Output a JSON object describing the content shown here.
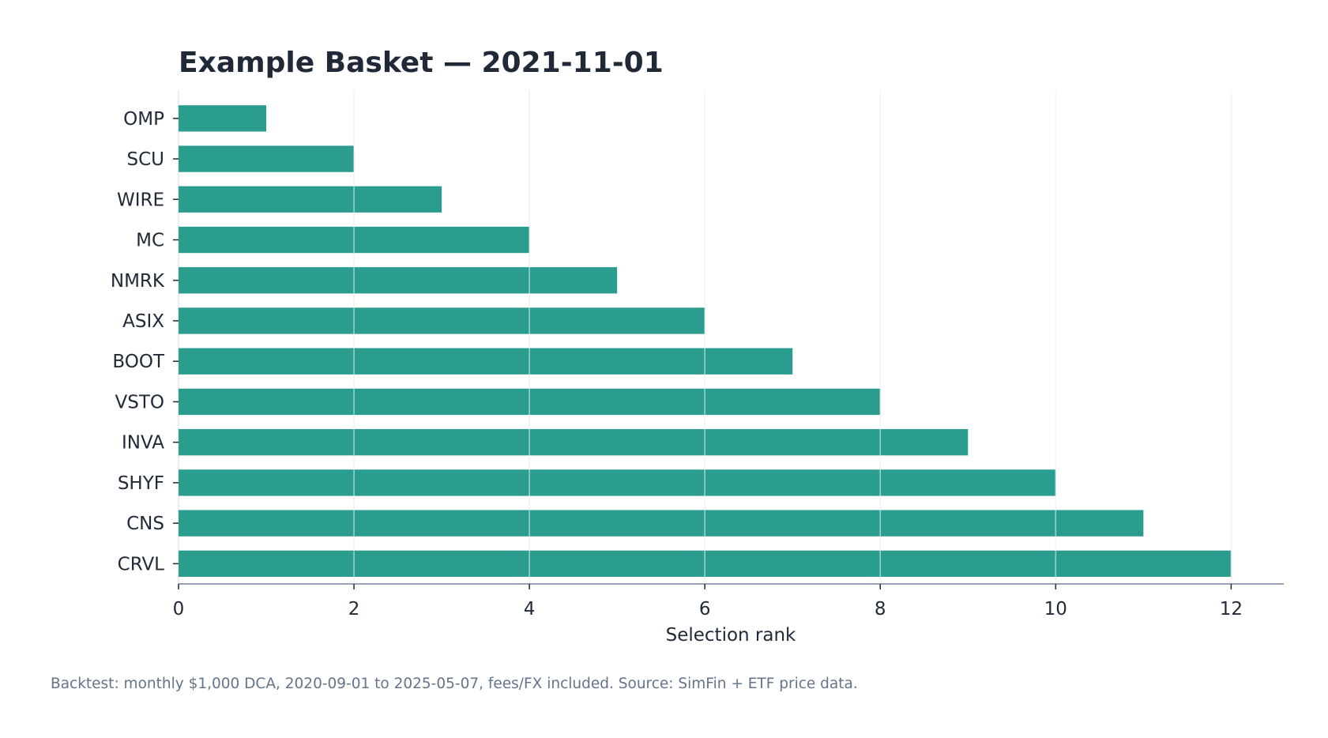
{
  "chart_data": {
    "type": "bar",
    "orientation": "horizontal",
    "title": "Example Basket — 2021-11-01",
    "xlabel": "Selection rank",
    "ylabel": "",
    "categories": [
      "OMP",
      "SCU",
      "WIRE",
      "MC",
      "NMRK",
      "ASIX",
      "BOOT",
      "VSTO",
      "INVA",
      "SHYF",
      "CNS",
      "CRVL"
    ],
    "values": [
      1,
      2,
      3,
      4,
      5,
      6,
      7,
      8,
      9,
      10,
      11,
      12
    ],
    "xlim": [
      0,
      12.6
    ],
    "xticks": [
      0,
      2,
      4,
      6,
      8,
      10,
      12
    ],
    "grid": true,
    "legend": "none",
    "bar_color": "#2a9d8f",
    "grid_color": "#e5e7eb",
    "axis_color": "#8b93b0"
  },
  "footnote": "Backtest: monthly $1,000 DCA, 2020-09-01 to 2025-05-07, fees/FX included. Source: SimFin + ETF price data."
}
